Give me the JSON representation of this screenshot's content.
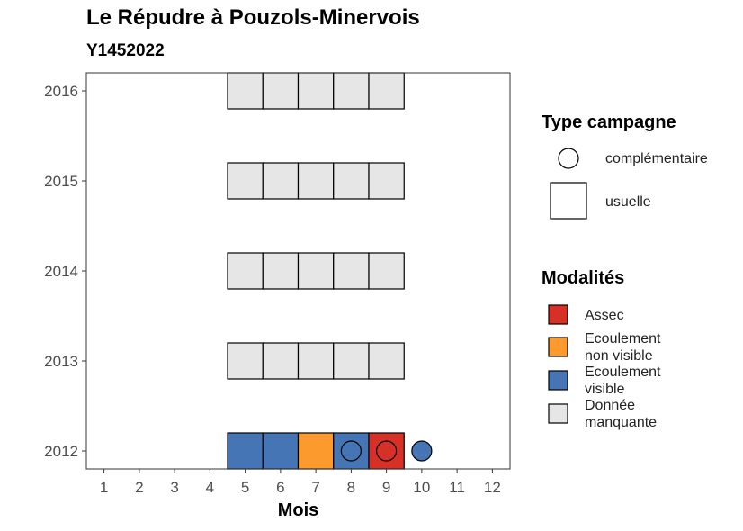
{
  "chart_data": {
    "type": "heatmap",
    "title": "Le Répudre à Pouzols-Minervois",
    "subtitle": "Y1452022",
    "xlabel": "Mois",
    "ylabel": "",
    "x_ticks": [
      1,
      2,
      3,
      4,
      5,
      6,
      7,
      8,
      9,
      10,
      11,
      12
    ],
    "y_ticks": [
      2012,
      2013,
      2014,
      2015,
      2016
    ],
    "xlim": [
      0.5,
      12.5
    ],
    "ylim": [
      2011.8,
      2016.2
    ],
    "colors": {
      "Assec": "#d73027",
      "Ecoulement non visible": "#fd9a2d",
      "Ecoulement visible": "#4575b4",
      "Donnée manquante": "#e6e6e6"
    },
    "usuelle": [
      {
        "year": 2016,
        "month": 5,
        "modalite": "Donnée manquante"
      },
      {
        "year": 2016,
        "month": 6,
        "modalite": "Donnée manquante"
      },
      {
        "year": 2016,
        "month": 7,
        "modalite": "Donnée manquante"
      },
      {
        "year": 2016,
        "month": 8,
        "modalite": "Donnée manquante"
      },
      {
        "year": 2016,
        "month": 9,
        "modalite": "Donnée manquante"
      },
      {
        "year": 2015,
        "month": 5,
        "modalite": "Donnée manquante"
      },
      {
        "year": 2015,
        "month": 6,
        "modalite": "Donnée manquante"
      },
      {
        "year": 2015,
        "month": 7,
        "modalite": "Donnée manquante"
      },
      {
        "year": 2015,
        "month": 8,
        "modalite": "Donnée manquante"
      },
      {
        "year": 2015,
        "month": 9,
        "modalite": "Donnée manquante"
      },
      {
        "year": 2014,
        "month": 5,
        "modalite": "Donnée manquante"
      },
      {
        "year": 2014,
        "month": 6,
        "modalite": "Donnée manquante"
      },
      {
        "year": 2014,
        "month": 7,
        "modalite": "Donnée manquante"
      },
      {
        "year": 2014,
        "month": 8,
        "modalite": "Donnée manquante"
      },
      {
        "year": 2014,
        "month": 9,
        "modalite": "Donnée manquante"
      },
      {
        "year": 2013,
        "month": 5,
        "modalite": "Donnée manquante"
      },
      {
        "year": 2013,
        "month": 6,
        "modalite": "Donnée manquante"
      },
      {
        "year": 2013,
        "month": 7,
        "modalite": "Donnée manquante"
      },
      {
        "year": 2013,
        "month": 8,
        "modalite": "Donnée manquante"
      },
      {
        "year": 2013,
        "month": 9,
        "modalite": "Donnée manquante"
      },
      {
        "year": 2012,
        "month": 5,
        "modalite": "Ecoulement visible"
      },
      {
        "year": 2012,
        "month": 6,
        "modalite": "Ecoulement visible"
      },
      {
        "year": 2012,
        "month": 7,
        "modalite": "Ecoulement non visible"
      },
      {
        "year": 2012,
        "month": 8,
        "modalite": "Ecoulement visible"
      },
      {
        "year": 2012,
        "month": 9,
        "modalite": "Assec"
      }
    ],
    "complementaire": [
      {
        "year": 2012,
        "month": 8,
        "modalite": "Ecoulement visible"
      },
      {
        "year": 2012,
        "month": 9,
        "modalite": "Assec"
      },
      {
        "year": 2012,
        "month": 10,
        "modalite": "Ecoulement visible"
      }
    ],
    "legend_type": {
      "title": "Type campagne",
      "entries": [
        {
          "shape": "circle",
          "label": "complémentaire"
        },
        {
          "shape": "square",
          "label": "usuelle"
        }
      ]
    },
    "legend_modalites": {
      "title": "Modalités",
      "entries": [
        {
          "key": "Assec",
          "lines": [
            "Assec"
          ]
        },
        {
          "key": "Ecoulement non visible",
          "lines": [
            "Ecoulement",
            "non visible"
          ]
        },
        {
          "key": "Ecoulement visible",
          "lines": [
            "Ecoulement",
            "visible"
          ]
        },
        {
          "key": "Donnée manquante",
          "lines": [
            "Donnée",
            "manquante"
          ]
        }
      ]
    }
  }
}
